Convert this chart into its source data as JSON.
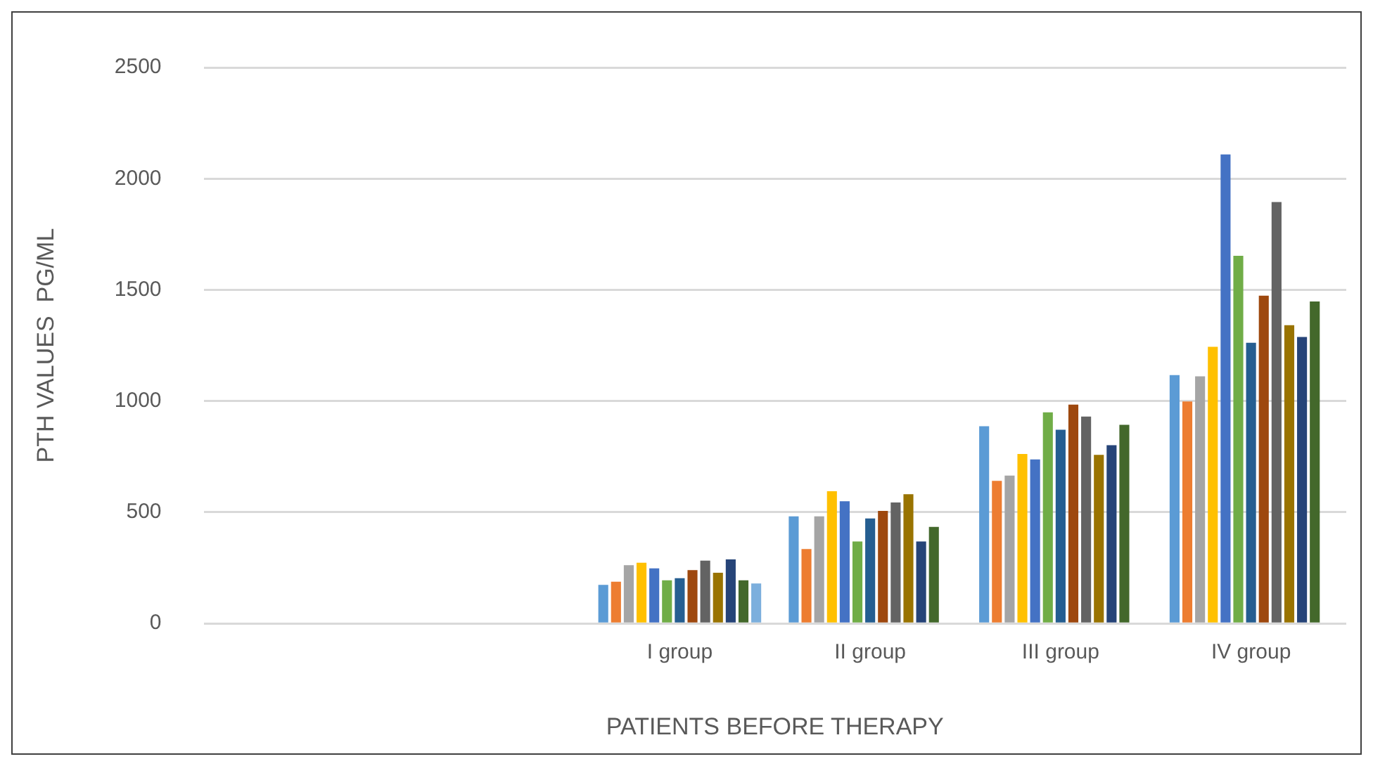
{
  "chart_data": {
    "type": "bar",
    "xlabel": "PATIENTS BEFORE THERAPY",
    "ylabel": "PTH VALUES  PG/ML",
    "categories": [
      null,
      null,
      "I group",
      "II group",
      "III group",
      "IV group"
    ],
    "ylim": [
      0,
      2500
    ],
    "yticks": [
      0,
      500,
      1000,
      1500,
      2000,
      2500
    ],
    "grid": "y",
    "legend": false,
    "series": [
      {
        "color": "#5b9bd5",
        "values": [
          null,
          null,
          174,
          482,
          887,
          1117
        ]
      },
      {
        "color": "#ed7d31",
        "values": [
          null,
          null,
          188,
          335,
          641,
          998
        ]
      },
      {
        "color": "#a5a5a5",
        "values": [
          null,
          null,
          262,
          482,
          665,
          1111
        ]
      },
      {
        "color": "#ffc000",
        "values": [
          null,
          null,
          273,
          595,
          762,
          1244
        ]
      },
      {
        "color": "#4472c4",
        "values": [
          null,
          null,
          248,
          550,
          738,
          2109
        ]
      },
      {
        "color": "#70ad47",
        "values": [
          null,
          null,
          194,
          369,
          949,
          1653
        ]
      },
      {
        "color": "#255e91",
        "values": [
          null,
          null,
          204,
          472,
          871,
          1262
        ]
      },
      {
        "color": "#9e480e",
        "values": [
          null,
          null,
          240,
          506,
          984,
          1474
        ]
      },
      {
        "color": "#636363",
        "values": [
          null,
          null,
          283,
          544,
          930,
          1895
        ]
      },
      {
        "color": "#997300",
        "values": [
          null,
          null,
          228,
          581,
          758,
          1341
        ]
      },
      {
        "color": "#264478",
        "values": [
          null,
          null,
          288,
          369,
          802,
          1288
        ]
      },
      {
        "color": "#43682b",
        "values": [
          null,
          null,
          194,
          434,
          893,
          1448
        ]
      },
      {
        "color": "#7cafdd",
        "values": [
          null,
          null,
          180,
          null,
          null,
          null
        ]
      }
    ]
  }
}
